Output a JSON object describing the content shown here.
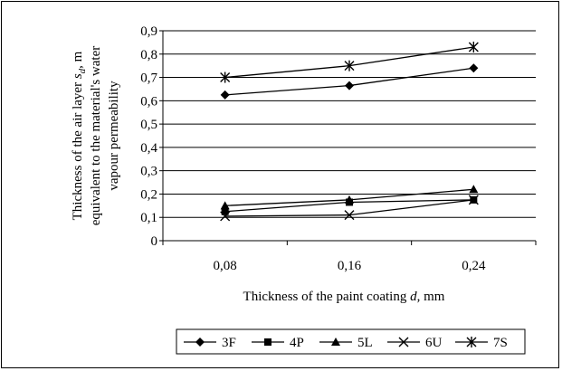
{
  "chart_data": {
    "type": "line",
    "title": "",
    "xlabel": "Thickness of the paint coating",
    "xlabel_symbol": "d",
    "xlabel_unit": ", mm",
    "ylabel_lines": [
      {
        "text": "Thickness of the air layer ",
        "symbol": "s",
        "sub": "d",
        "tail": ", m"
      },
      {
        "text": "equivalent to the material's water"
      },
      {
        "text": "vapour permeability"
      }
    ],
    "categories": [
      "0,08",
      "0,16",
      "0,24"
    ],
    "ylim": [
      0,
      0.9
    ],
    "yticks": [
      "0",
      "0,1",
      "0,2",
      "0,3",
      "0,4",
      "0,5",
      "0,6",
      "0,7",
      "0,8",
      "0,9"
    ],
    "grid": "horizontal",
    "legend_position": "bottom",
    "series": [
      {
        "name": "3F",
        "marker": "diamond",
        "values": [
          0.625,
          0.665,
          0.74
        ]
      },
      {
        "name": "4P",
        "marker": "square",
        "values": [
          0.125,
          0.165,
          0.175
        ]
      },
      {
        "name": "5L",
        "marker": "triangle",
        "values": [
          0.15,
          0.175,
          0.22
        ]
      },
      {
        "name": "6U",
        "marker": "x",
        "values": [
          0.105,
          0.11,
          0.175
        ]
      },
      {
        "name": "7S",
        "marker": "star",
        "values": [
          0.7,
          0.75,
          0.83
        ]
      }
    ]
  }
}
